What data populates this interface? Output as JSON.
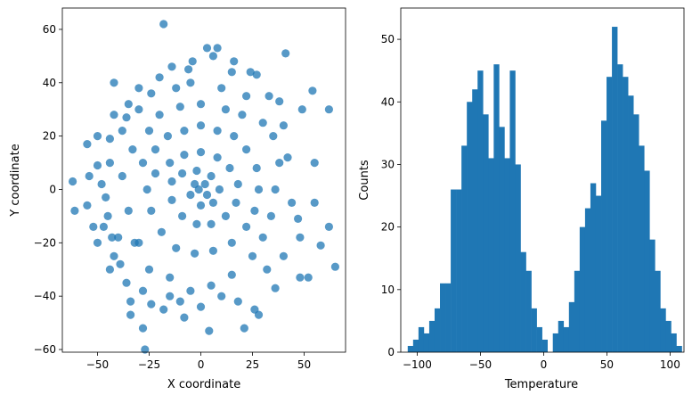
{
  "chart_data": [
    {
      "type": "scatter",
      "xlabel": "X coordinate",
      "ylabel": "Y coordinate",
      "xlim": [
        -67,
        70
      ],
      "ylim": [
        -61,
        68
      ],
      "xticks": [
        -50,
        -25,
        0,
        25,
        50
      ],
      "yticks": [
        -60,
        -40,
        -20,
        0,
        20,
        40,
        60
      ],
      "color": "#1f77b4",
      "opacity": 0.75,
      "points": [
        [
          -18,
          62
        ],
        [
          -42,
          40
        ],
        [
          3,
          53
        ],
        [
          8,
          53
        ],
        [
          -6,
          45
        ],
        [
          15,
          44
        ],
        [
          27,
          43
        ],
        [
          41,
          51
        ],
        [
          54,
          37
        ],
        [
          62,
          30
        ],
        [
          -55,
          17
        ],
        [
          -62,
          3
        ],
        [
          -50,
          9
        ],
        [
          -61,
          -8
        ],
        [
          -47,
          -14
        ],
        [
          -43,
          -18
        ],
        [
          -39,
          -28
        ],
        [
          -34,
          -42
        ],
        [
          -28,
          -52
        ],
        [
          -27,
          -60
        ],
        [
          -8,
          -48
        ],
        [
          4,
          -53
        ],
        [
          21,
          -52
        ],
        [
          26,
          -45
        ],
        [
          28,
          -47
        ],
        [
          36,
          -37
        ],
        [
          48,
          -33
        ],
        [
          52,
          -33
        ],
        [
          58,
          -21
        ],
        [
          62,
          -14
        ],
        [
          65,
          -29
        ],
        [
          55,
          -5
        ],
        [
          47,
          -11
        ],
        [
          48,
          -18
        ],
        [
          55,
          10
        ],
        [
          49,
          30
        ],
        [
          38,
          33
        ],
        [
          -24,
          -43
        ],
        [
          -34,
          -47
        ],
        [
          -15,
          -40
        ],
        [
          -30,
          30
        ],
        [
          -36,
          27
        ],
        [
          -30,
          38
        ],
        [
          -20,
          42
        ],
        [
          -12,
          38
        ],
        [
          -5,
          40
        ],
        [
          10,
          38
        ],
        [
          22,
          35
        ],
        [
          -44,
          10
        ],
        [
          -46,
          -3
        ],
        [
          -40,
          -18
        ],
        [
          -32,
          -20
        ],
        [
          -44,
          19
        ],
        [
          -38,
          22
        ],
        [
          -25,
          22
        ],
        [
          -20,
          28
        ],
        [
          -10,
          31
        ],
        [
          0,
          32
        ],
        [
          12,
          30
        ],
        [
          20,
          28
        ],
        [
          30,
          25
        ],
        [
          35,
          20
        ],
        [
          38,
          10
        ],
        [
          36,
          0
        ],
        [
          34,
          -10
        ],
        [
          30,
          -18
        ],
        [
          25,
          -25
        ],
        [
          15,
          -32
        ],
        [
          5,
          -36
        ],
        [
          -5,
          -38
        ],
        [
          -15,
          -33
        ],
        [
          -25,
          -30
        ],
        [
          -30,
          -20
        ],
        [
          -35,
          -8
        ],
        [
          -38,
          5
        ],
        [
          -33,
          15
        ],
        [
          -28,
          10
        ],
        [
          -22,
          15
        ],
        [
          -16,
          20
        ],
        [
          -8,
          22
        ],
        [
          0,
          24
        ],
        [
          8,
          22
        ],
        [
          16,
          20
        ],
        [
          22,
          15
        ],
        [
          27,
          8
        ],
        [
          28,
          0
        ],
        [
          26,
          -8
        ],
        [
          22,
          -14
        ],
        [
          15,
          -20
        ],
        [
          6,
          -23
        ],
        [
          -3,
          -24
        ],
        [
          -12,
          -22
        ],
        [
          -19,
          -16
        ],
        [
          -24,
          -8
        ],
        [
          -26,
          0
        ],
        [
          -22,
          6
        ],
        [
          -15,
          10
        ],
        [
          -8,
          13
        ],
        [
          0,
          14
        ],
        [
          8,
          12
        ],
        [
          14,
          8
        ],
        [
          18,
          2
        ],
        [
          17,
          -5
        ],
        [
          12,
          -10
        ],
        [
          5,
          -13
        ],
        [
          -2,
          -13
        ],
        [
          -9,
          -10
        ],
        [
          -14,
          -4
        ],
        [
          -14,
          3
        ],
        [
          -9,
          6
        ],
        [
          -2,
          7
        ],
        [
          5,
          5
        ],
        [
          9,
          0
        ],
        [
          6,
          -5
        ],
        [
          0,
          -6
        ],
        [
          -5,
          -2
        ],
        [
          -3,
          2
        ],
        [
          2,
          2
        ],
        [
          3,
          -2
        ],
        [
          -1,
          0
        ],
        [
          -45,
          -10
        ],
        [
          -52,
          -14
        ],
        [
          -48,
          2
        ],
        [
          -42,
          -25
        ],
        [
          -36,
          -35
        ],
        [
          -28,
          -38
        ],
        [
          -18,
          -45
        ],
        [
          -10,
          -42
        ],
        [
          0,
          -44
        ],
        [
          10,
          -40
        ],
        [
          18,
          -42
        ],
        [
          32,
          -30
        ],
        [
          40,
          -25
        ],
        [
          44,
          -5
        ],
        [
          42,
          12
        ],
        [
          40,
          24
        ],
        [
          33,
          35
        ],
        [
          24,
          44
        ],
        [
          16,
          48
        ],
        [
          6,
          50
        ],
        [
          -4,
          48
        ],
        [
          -14,
          46
        ],
        [
          -24,
          36
        ],
        [
          -35,
          32
        ],
        [
          -42,
          28
        ],
        [
          -50,
          20
        ],
        [
          -54,
          5
        ],
        [
          -55,
          -6
        ],
        [
          -50,
          -20
        ],
        [
          -44,
          -30
        ]
      ]
    },
    {
      "type": "bar",
      "xlabel": "Temperature",
      "ylabel": "Counts",
      "xlim": [
        -113,
        111
      ],
      "ylim": [
        0,
        55
      ],
      "xticks": [
        -100,
        -50,
        0,
        50,
        100
      ],
      "yticks": [
        0,
        10,
        20,
        30,
        40,
        50
      ],
      "color": "#1f77b4",
      "bin_start": -107.5,
      "bin_width": 4.25,
      "values": [
        1,
        2,
        4,
        3,
        5,
        7,
        11,
        11,
        26,
        26,
        33,
        40,
        42,
        45,
        38,
        31,
        46,
        36,
        31,
        45,
        30,
        16,
        13,
        7,
        4,
        2,
        0,
        3,
        5,
        4,
        8,
        13,
        20,
        23,
        27,
        25,
        37,
        44,
        52,
        46,
        44,
        41,
        38,
        33,
        29,
        18,
        13,
        7,
        5,
        3,
        1
      ]
    }
  ]
}
